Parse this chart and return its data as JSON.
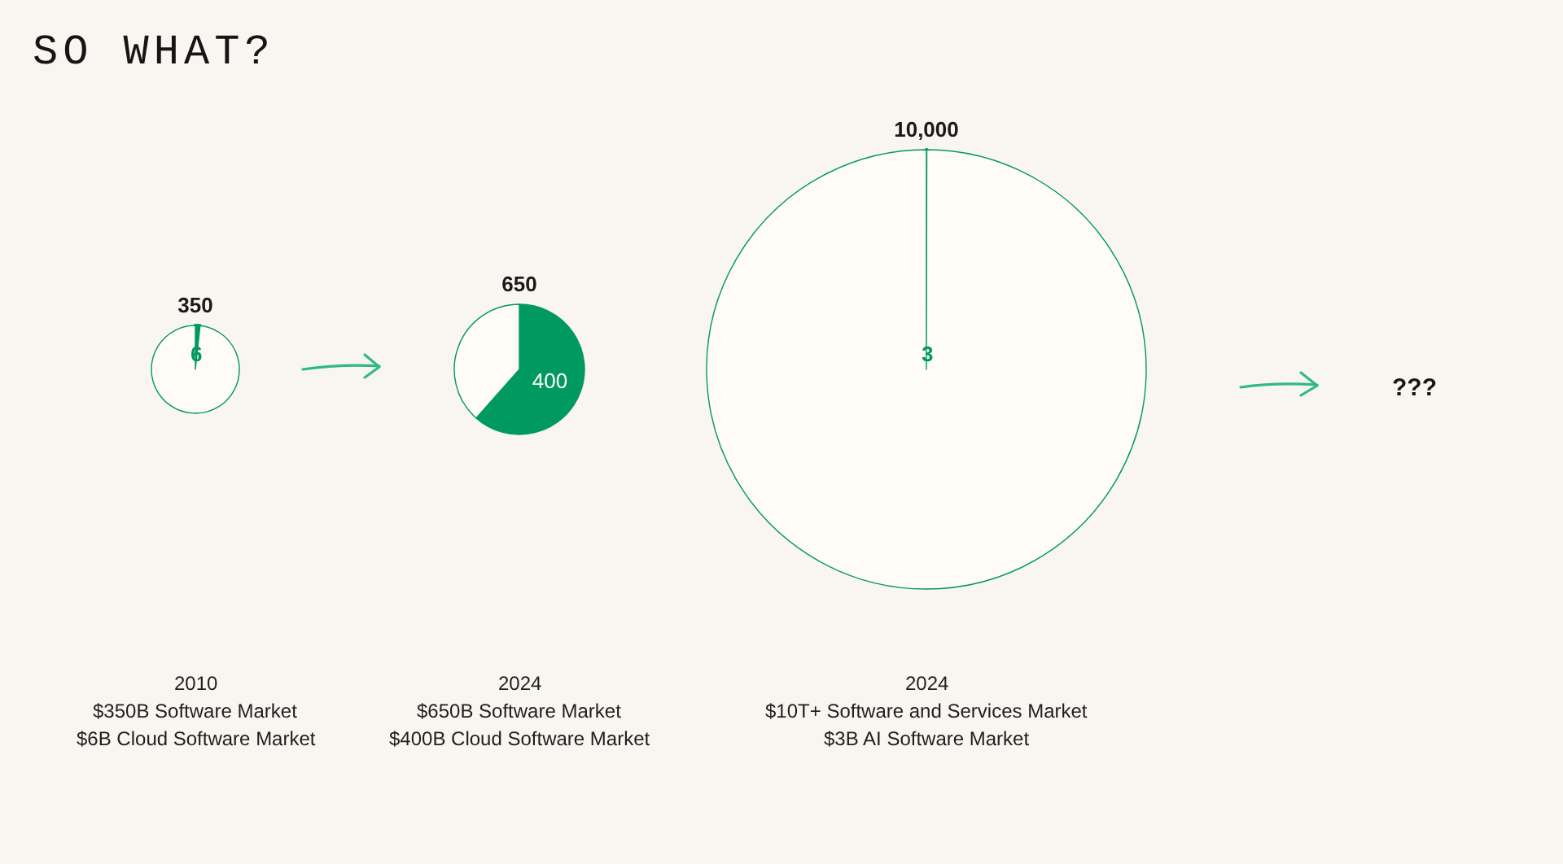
{
  "chart_data": [
    {
      "type": "other",
      "title": "SO WHAT?"
    },
    {
      "type": "pie",
      "title": "350",
      "categories": [
        null,
        null
      ],
      "values": [
        6,
        344
      ],
      "colors": [
        "#00995f",
        "#fffcf5"
      ],
      "value_labels": [
        "6",
        null
      ],
      "annotations": [
        "2010",
        "$350B Software Market",
        "$6B Cloud Software Market"
      ]
    },
    {
      "type": "pie",
      "title": "650",
      "categories": [
        null,
        null
      ],
      "values": [
        400,
        250
      ],
      "colors": [
        "#00995f",
        "#fffcf5"
      ],
      "value_labels": [
        "400",
        null
      ],
      "annotations": [
        "2024",
        "$650B Software Market",
        "$400B Cloud Software Market"
      ]
    },
    {
      "type": "pie",
      "title": "10,000",
      "categories": [
        null,
        null
      ],
      "values": [
        3,
        9997
      ],
      "colors": [
        "#00995f",
        "#fffcf5"
      ],
      "value_labels": [
        "3",
        null
      ],
      "annotations": [
        "2024",
        "$10T+ Software and Services Market",
        "$3B AI Software Market"
      ]
    },
    {
      "type": "other",
      "title": "???"
    }
  ]
}
